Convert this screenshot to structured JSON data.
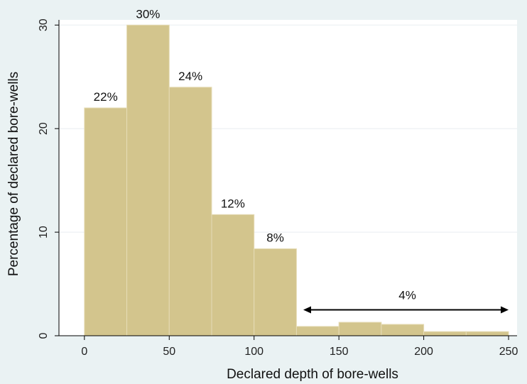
{
  "chart_data": {
    "type": "bar",
    "title": "",
    "xlabel": "Declared depth of bore-wells",
    "ylabel": "Percentage of declared bore-wells",
    "xlim": [
      -15,
      255
    ],
    "ylim": [
      0,
      30.5
    ],
    "xticks": [
      0,
      50,
      100,
      150,
      200,
      250
    ],
    "yticks": [
      0,
      10,
      20,
      30
    ],
    "grid": true,
    "bin_width": 25,
    "bins": [
      {
        "x_start": 0,
        "value": 22,
        "label": "22%"
      },
      {
        "x_start": 25,
        "value": 30,
        "label": "30%"
      },
      {
        "x_start": 50,
        "value": 24,
        "label": "24%"
      },
      {
        "x_start": 75,
        "value": 11.7,
        "label": "12%"
      },
      {
        "x_start": 100,
        "value": 8.4,
        "label": "8%"
      },
      {
        "x_start": 125,
        "value": 0.9,
        "label": ""
      },
      {
        "x_start": 150,
        "value": 1.3,
        "label": ""
      },
      {
        "x_start": 175,
        "value": 1.1,
        "label": ""
      },
      {
        "x_start": 200,
        "value": 0.4,
        "label": ""
      },
      {
        "x_start": 225,
        "value": 0.4,
        "label": ""
      }
    ],
    "range_annotation": {
      "x_start": 129,
      "x_end": 250,
      "y": 2.5,
      "label": "4%"
    },
    "colors": {
      "background": "#eaf2f3",
      "plot_background": "#ffffff",
      "bar_fill": "#d3c58d",
      "bar_stroke": "#e6dcb6",
      "grid": "#e9eef0",
      "axis": "#000000",
      "text": "#111111"
    }
  }
}
